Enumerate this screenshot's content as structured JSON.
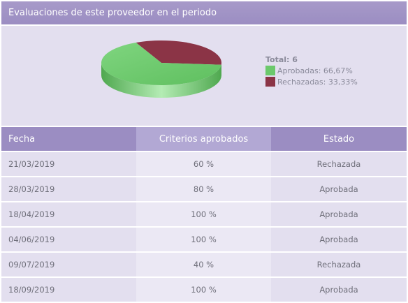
{
  "header": {
    "title": "Evaluaciones de este proveedor en el periodo"
  },
  "legend": {
    "total_label": "Total:",
    "total_value": "6",
    "items": [
      {
        "label": "Aprobadas: 66,67%",
        "color": "#6cc96c"
      },
      {
        "label": "Rechazadas: 33,33%",
        "color": "#8b3446"
      }
    ]
  },
  "chart_data": {
    "type": "pie",
    "categories": [
      "Aprobadas",
      "Rechazadas"
    ],
    "values": [
      66.67,
      33.33
    ],
    "colors": [
      "#6cc96c",
      "#8b3446"
    ],
    "total": 6
  },
  "table": {
    "columns": [
      "Fecha",
      "Criterios aprobados",
      "Estado"
    ],
    "rows": [
      {
        "fecha": "21/03/2019",
        "criterios": "60 %",
        "estado": "Rechazada"
      },
      {
        "fecha": "28/03/2019",
        "criterios": "80 %",
        "estado": "Aprobada"
      },
      {
        "fecha": "18/04/2019",
        "criterios": "100 %",
        "estado": "Aprobada"
      },
      {
        "fecha": "04/06/2019",
        "criterios": "100 %",
        "estado": "Aprobada"
      },
      {
        "fecha": "09/07/2019",
        "criterios": "40 %",
        "estado": "Rechazada"
      },
      {
        "fecha": "18/09/2019",
        "criterios": "100 %",
        "estado": "Aprobada"
      }
    ]
  }
}
